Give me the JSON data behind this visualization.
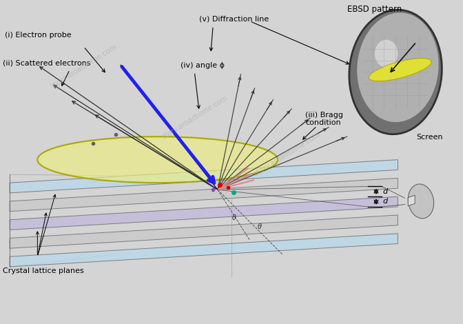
{
  "background_color": "#d8d8d8",
  "labels": {
    "electron_probe": "(i) Electron probe",
    "scattered": "(ii) Scattered electrons",
    "bragg": "(iii) Bragg\ncondition",
    "angle": "(iv) angle ϕ",
    "diffraction": "(v) Diffraction line",
    "ebsd": "EBSD pattern",
    "screen": "Screen",
    "crystal": "Crystal lattice planes"
  },
  "colors": {
    "background": "#d4d4d4",
    "blue_arrow": "#2020ee",
    "yellow_cone": "#f0f080",
    "blue_plane": "#aaccdd",
    "gray_plane": "#c0c0c0",
    "purple_plane": "#c8b8dc",
    "screen_outer": "#888888",
    "red_dot": "#dd0000",
    "green_dot": "#00aa00"
  },
  "watermark": "story.aroadtome.com"
}
